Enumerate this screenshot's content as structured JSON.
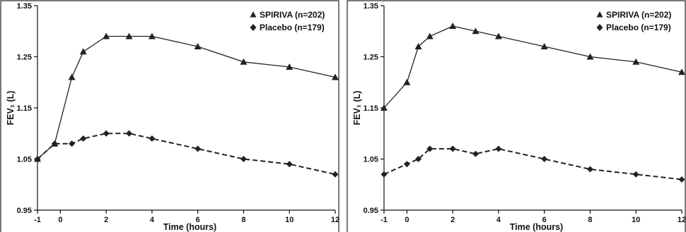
{
  "chart_data": [
    {
      "type": "line",
      "x": [
        -1,
        -0.25,
        0.5,
        1,
        2,
        3,
        4,
        6,
        8,
        10,
        12
      ],
      "xticks": [
        -1,
        0,
        2,
        4,
        6,
        8,
        10,
        12
      ],
      "xtick_labels": [
        "-1",
        "0",
        "2",
        "4",
        "6",
        "8",
        "10",
        "12"
      ],
      "yticks": [
        0.95,
        1.05,
        1.15,
        1.25,
        1.35
      ],
      "ytick_labels": [
        "0.95",
        "1.05",
        "1.15",
        "1.25",
        "1.35"
      ],
      "xlim": [
        -1,
        12
      ],
      "ylim": [
        0.95,
        1.35
      ],
      "xlabel": "Time (hours)",
      "ylabel": "FEV₁ (L)",
      "legend_position": "top-right",
      "series": [
        {
          "name": "SPIRIVA (n=202)",
          "marker": "triangle",
          "line": "solid",
          "values": [
            1.05,
            1.08,
            1.21,
            1.26,
            1.29,
            1.29,
            1.29,
            1.27,
            1.24,
            1.23,
            1.21
          ]
        },
        {
          "name": "Placebo (n=179)",
          "marker": "diamond",
          "line": "dashed",
          "values": [
            1.05,
            1.08,
            1.08,
            1.09,
            1.1,
            1.1,
            1.09,
            1.07,
            1.05,
            1.04,
            1.02
          ]
        }
      ]
    },
    {
      "type": "line",
      "x": [
        -1,
        0,
        0.5,
        1,
        2,
        3,
        4,
        6,
        8,
        10,
        12
      ],
      "xticks": [
        -1,
        0,
        2,
        4,
        6,
        8,
        10,
        12
      ],
      "xtick_labels": [
        "-1",
        "0",
        "2",
        "4",
        "6",
        "8",
        "10",
        "12"
      ],
      "yticks": [
        0.95,
        1.05,
        1.15,
        1.25,
        1.35
      ],
      "ytick_labels": [
        "0.95",
        "1.05",
        "1.15",
        "1.25",
        "1.35"
      ],
      "xlim": [
        -1,
        12
      ],
      "ylim": [
        0.95,
        1.35
      ],
      "xlabel": "Time (hours)",
      "ylabel": "FEV₁ (L)",
      "legend_position": "top-right",
      "series": [
        {
          "name": "SPIRIVA (n=202)",
          "marker": "triangle",
          "line": "solid",
          "values": [
            1.15,
            1.2,
            1.27,
            1.29,
            1.31,
            1.3,
            1.29,
            1.27,
            1.25,
            1.24,
            1.22
          ]
        },
        {
          "name": "Placebo (n=179)",
          "marker": "diamond",
          "line": "dashed",
          "values": [
            1.02,
            1.04,
            1.05,
            1.07,
            1.07,
            1.06,
            1.07,
            1.05,
            1.03,
            1.02,
            1.01
          ]
        }
      ]
    }
  ]
}
